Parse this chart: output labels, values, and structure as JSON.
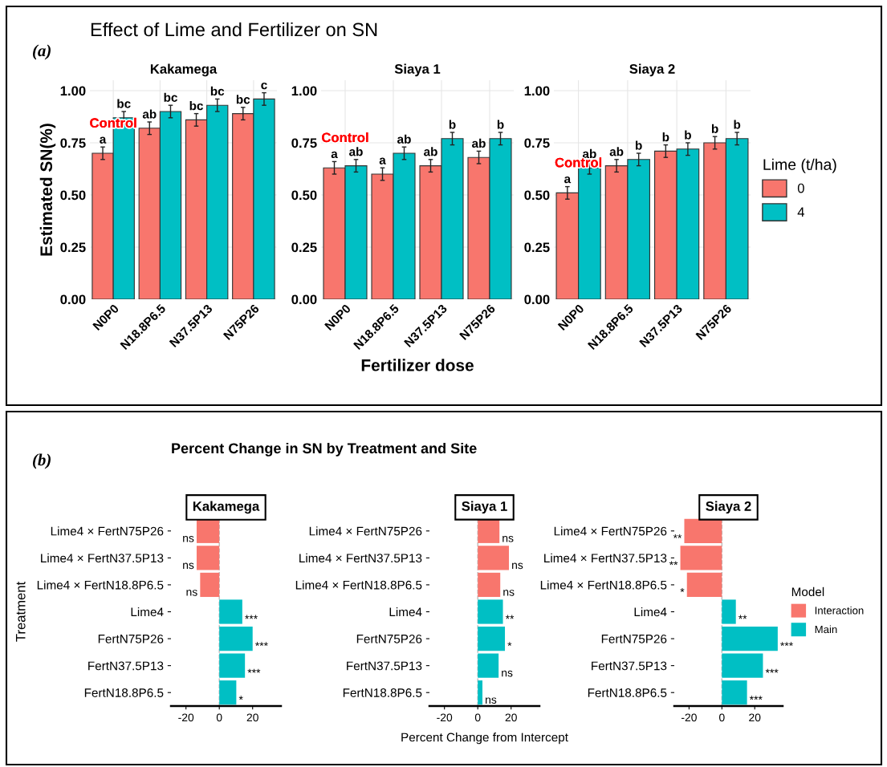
{
  "chart_data": [
    {
      "type": "bar",
      "title": "Effect of Lime and Fertilizer on SN",
      "subtitle": "Kakamega",
      "ylabel": "Estimated SN(%)",
      "annotations": [
        "(a)",
        "Control"
      ],
      "categories": [
        "N0P0",
        "N18.8P6.5",
        "N37.5P13",
        "N75P26"
      ],
      "series": [
        {
          "color": "#f8766d",
          "values": [
            0.7,
            0.82,
            0.86,
            0.89
          ],
          "errors": [
            0.03,
            0.03,
            0.03,
            0.03
          ],
          "value_labels": [
            "a",
            "ab",
            "bc",
            "bc"
          ]
        },
        {
          "color": "#00bfc4",
          "values": [
            0.87,
            0.9,
            0.93,
            0.96
          ],
          "errors": [
            0.03,
            0.03,
            0.03,
            0.03
          ],
          "value_labels": [
            "bc",
            "bc",
            "bc",
            "c"
          ]
        }
      ],
      "ylim": [
        0,
        1.05
      ],
      "yticks": [
        {
          "value": 0,
          "label": "0.00"
        },
        {
          "value": 0.25,
          "label": "0.25"
        },
        {
          "value": 0.5,
          "label": "0.50"
        },
        {
          "value": 0.75,
          "label": "0.75"
        },
        {
          "value": 1,
          "label": "1.00"
        }
      ],
      "grid": true
    },
    {
      "type": "bar",
      "subtitle": "Siaya 1",
      "xlabel": "Fertilizer dose",
      "annotations": [
        "Control"
      ],
      "categories": [
        "N0P0",
        "N18.8P6.5",
        "N37.5P13",
        "N75P26"
      ],
      "series": [
        {
          "color": "#f8766d",
          "values": [
            0.63,
            0.6,
            0.64,
            0.68
          ],
          "errors": [
            0.03,
            0.03,
            0.03,
            0.03
          ],
          "value_labels": [
            "a",
            "a",
            "ab",
            "ab"
          ]
        },
        {
          "color": "#00bfc4",
          "values": [
            0.64,
            0.7,
            0.77,
            0.77
          ],
          "errors": [
            0.03,
            0.03,
            0.03,
            0.03
          ],
          "value_labels": [
            "ab",
            "ab",
            "b",
            "b"
          ]
        }
      ],
      "ylim": [
        0,
        1.05
      ],
      "yticks": [
        {
          "value": 0,
          "label": "0.00"
        },
        {
          "value": 0.25,
          "label": "0.25"
        },
        {
          "value": 0.5,
          "label": "0.50"
        },
        {
          "value": 0.75,
          "label": "0.75"
        },
        {
          "value": 1,
          "label": "1.00"
        }
      ],
      "grid": true
    },
    {
      "type": "bar",
      "subtitle": "Siaya 2",
      "legend_title": "Lime (t/ha)",
      "legend": "right",
      "annotations": [
        "Control"
      ],
      "categories": [
        "N0P0",
        "N18.8P6.5",
        "N37.5P13",
        "N75P26"
      ],
      "series": [
        {
          "name": "0",
          "color": "#f8766d",
          "values": [
            0.51,
            0.64,
            0.71,
            0.75
          ],
          "errors": [
            0.03,
            0.03,
            0.03,
            0.03
          ],
          "value_labels": [
            "a",
            "ab",
            "b",
            "b"
          ]
        },
        {
          "name": "4",
          "color": "#00bfc4",
          "values": [
            0.63,
            0.67,
            0.72,
            0.77
          ],
          "errors": [
            0.03,
            0.03,
            0.03,
            0.03
          ],
          "value_labels": [
            "ab",
            "b",
            "b",
            "b"
          ]
        }
      ],
      "ylim": [
        0,
        1.05
      ],
      "yticks": [
        {
          "value": 0,
          "label": "0.00"
        },
        {
          "value": 0.25,
          "label": "0.25"
        },
        {
          "value": 0.5,
          "label": "0.50"
        },
        {
          "value": 0.75,
          "label": "0.75"
        },
        {
          "value": 1,
          "label": "1.00"
        }
      ],
      "grid": true
    },
    {
      "type": "bar",
      "orientation": "horizontal",
      "stacked": true,
      "title": "Percent Change in SN by Treatment and Site",
      "subtitle": "Kakamega",
      "ylabel": "Treatment",
      "annotations": [
        "(b)"
      ],
      "categories": [
        "Lime4 × FertN75P26",
        "Lime4 × FertN37.5P13",
        "Lime4 × FertN18.8P6.5",
        "Lime4",
        "FertN75P26",
        "FertN37.5P13",
        "FertN18.8P6.5"
      ],
      "series": [
        {
          "color": "#f8766d",
          "values": [
            -13.6,
            -13.6,
            -11.5,
            null,
            null,
            null,
            null
          ],
          "value_labels": [
            "ns",
            "ns",
            "ns",
            null,
            null,
            null,
            null
          ]
        },
        {
          "color": "#00bfc4",
          "values": [
            null,
            null,
            null,
            13.8,
            20,
            15.4,
            10.2
          ],
          "value_labels": [
            null,
            null,
            null,
            "***",
            "***",
            "***",
            "*"
          ]
        }
      ],
      "xlim": [
        -29,
        37
      ],
      "xticks": [
        -20,
        0,
        20
      ],
      "ref_lines": [
        {
          "axis": "x",
          "value": 0,
          "color": "#bbbbbb",
          "line_style": "dashed"
        }
      ],
      "grid": false
    },
    {
      "type": "bar",
      "orientation": "horizontal",
      "stacked": true,
      "subtitle": "Siaya 1",
      "xlabel": "Percent Change from Intercept",
      "categories": [
        "Lime4 × FertN75P26",
        "Lime4 × FertN37.5P13",
        "Lime4 × FertN18.8P6.5",
        "Lime4",
        "FertN75P26",
        "FertN37.5P13",
        "FertN18.8P6.5"
      ],
      "series": [
        {
          "color": "#f8766d",
          "values": [
            13,
            18.7,
            13.5,
            null,
            null,
            null,
            null
          ],
          "value_labels": [
            "ns",
            "ns",
            "ns",
            null,
            null,
            null,
            null
          ]
        },
        {
          "color": "#00bfc4",
          "values": [
            null,
            null,
            null,
            15.1,
            16.3,
            12.5,
            2.8
          ],
          "value_labels": [
            null,
            null,
            null,
            "**",
            "*",
            "ns",
            "ns"
          ]
        }
      ],
      "xlim": [
        -29,
        37
      ],
      "xticks": [
        -20,
        0,
        20
      ],
      "ref_lines": [
        {
          "axis": "x",
          "value": 0,
          "color": "#bbbbbb",
          "line_style": "dashed"
        }
      ],
      "grid": false
    },
    {
      "type": "bar",
      "orientation": "horizontal",
      "stacked": true,
      "subtitle": "Siaya 2",
      "legend_title": "Model",
      "legend": "right",
      "categories": [
        "Lime4 × FertN75P26",
        "Lime4 × FertN37.5P13",
        "Lime4 × FertN18.8P6.5",
        "Lime4",
        "FertN75P26",
        "FertN37.5P13",
        "FertN18.8P6.5"
      ],
      "series": [
        {
          "name": "Interaction",
          "color": "#f8766d",
          "values": [
            -22.9,
            -25.3,
            -21.3,
            null,
            null,
            null,
            null
          ],
          "value_labels": [
            "**",
            "**",
            "*",
            null,
            null,
            null,
            null
          ]
        },
        {
          "name": "Main",
          "color": "#00bfc4",
          "values": [
            null,
            null,
            null,
            8.5,
            34,
            25,
            15.3
          ],
          "value_labels": [
            null,
            null,
            null,
            "**",
            "***",
            "***",
            "***"
          ]
        }
      ],
      "xlim": [
        -29,
        37
      ],
      "xticks": [
        -20,
        0,
        20
      ],
      "ref_lines": [
        {
          "axis": "x",
          "value": 0,
          "color": "#bbbbbb",
          "line_style": "dashed"
        }
      ],
      "grid": false
    }
  ]
}
